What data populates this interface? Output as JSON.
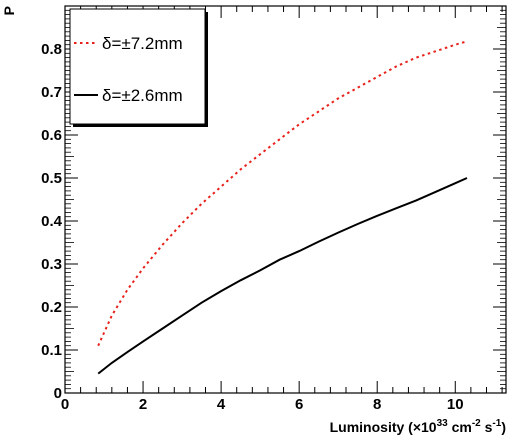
{
  "chart_data": {
    "type": "line",
    "ylabel": "P",
    "xlabel": {
      "base": "Luminosity (×10",
      "exp1": "33",
      "mid1": " cm",
      "exp2": "-2",
      "mid2": " s",
      "exp3": "-1",
      "end": ")"
    },
    "xlim": [
      0,
      11.3
    ],
    "ylim": [
      0,
      0.9
    ],
    "x_ticks": [
      0,
      2,
      4,
      6,
      8,
      10
    ],
    "x_tick_labels": [
      "0",
      "2",
      "4",
      "6",
      "8",
      "10"
    ],
    "y_ticks": [
      0,
      0.1,
      0.2,
      0.3,
      0.4,
      0.5,
      0.6,
      0.7,
      0.8
    ],
    "y_tick_labels": [
      "0",
      "0.1",
      "0.2",
      "0.3",
      "0.4",
      "0.5",
      "0.6",
      "0.7",
      "0.8"
    ],
    "grid": false,
    "legend_position": "top-left",
    "series": [
      {
        "name": "δ=±7.2mm",
        "color": "#e8201a",
        "style": "dotted",
        "x": [
          0.85,
          1.2,
          1.6,
          2.0,
          2.5,
          3.0,
          3.5,
          4.0,
          4.5,
          5.0,
          5.5,
          6.0,
          6.5,
          7.0,
          7.5,
          8.0,
          8.5,
          9.0,
          9.5,
          10.0,
          10.3
        ],
        "y": [
          0.11,
          0.18,
          0.24,
          0.29,
          0.345,
          0.395,
          0.44,
          0.48,
          0.52,
          0.555,
          0.59,
          0.625,
          0.655,
          0.685,
          0.71,
          0.735,
          0.76,
          0.78,
          0.795,
          0.81,
          0.818
        ]
      },
      {
        "name": "δ=±2.6mm",
        "color": "#000000",
        "style": "solid",
        "x": [
          0.85,
          1.2,
          1.6,
          2.0,
          2.5,
          3.0,
          3.5,
          4.0,
          4.5,
          5.0,
          5.5,
          6.0,
          6.5,
          7.0,
          7.5,
          8.0,
          8.5,
          9.0,
          9.5,
          10.0,
          10.3
        ],
        "y": [
          0.045,
          0.07,
          0.095,
          0.12,
          0.15,
          0.18,
          0.21,
          0.237,
          0.262,
          0.285,
          0.31,
          0.33,
          0.352,
          0.373,
          0.393,
          0.412,
          0.43,
          0.448,
          0.468,
          0.488,
          0.5
        ]
      }
    ]
  }
}
